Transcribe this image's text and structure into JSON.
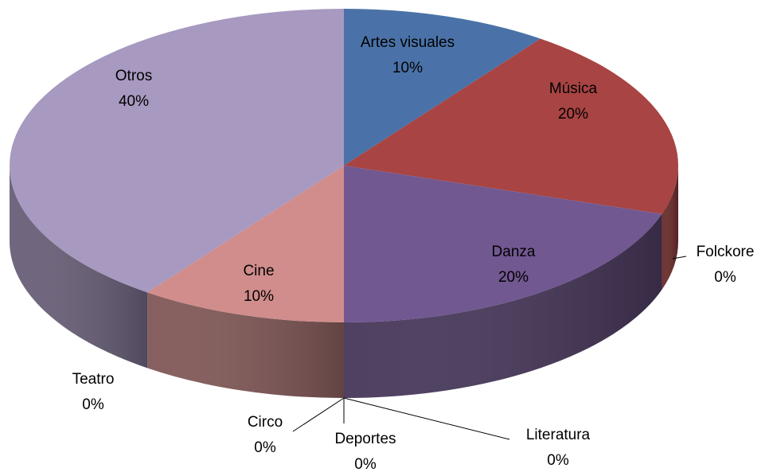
{
  "chart_data": {
    "type": "pie",
    "categories": [
      "Artes visuales",
      "Música",
      "Danza",
      "Folckore",
      "Literatura",
      "Deportes",
      "Circo",
      "Cine",
      "Teatro",
      "Otros"
    ],
    "values": [
      10,
      20,
      20,
      0,
      0,
      0,
      0,
      10,
      0,
      40
    ],
    "value_labels": [
      "10%",
      "20%",
      "20%",
      "0%",
      "0%",
      "0%",
      "0%",
      "10%",
      "0%",
      "40%"
    ],
    "colors": [
      "#4a72a8",
      "#a84443",
      "#715891",
      "#46a9c4",
      "#f59a4a",
      "#5e7fb8",
      "#b4514f",
      "#d08d8c",
      "#8cab58",
      "#a899c0"
    ]
  }
}
